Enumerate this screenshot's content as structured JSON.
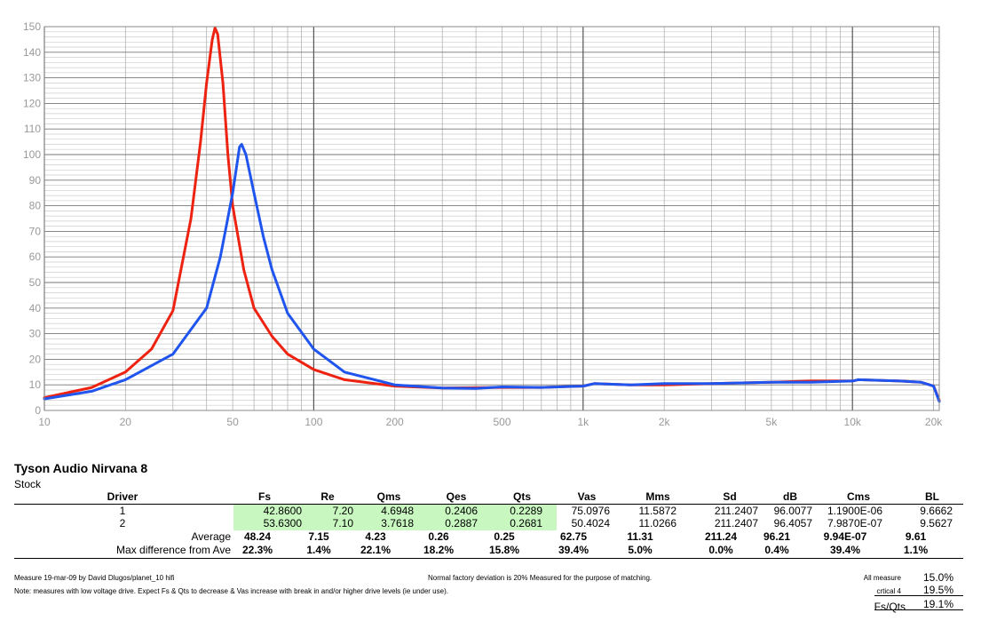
{
  "chart_data": {
    "type": "line",
    "xscale": "log",
    "xlim": [
      10,
      21000
    ],
    "ylim": [
      0,
      150
    ],
    "grid": true,
    "x_ticks": [
      {
        "value": 10,
        "label": "10"
      },
      {
        "value": 20,
        "label": "20"
      },
      {
        "value": 50,
        "label": "50"
      },
      {
        "value": 100,
        "label": "100"
      },
      {
        "value": 200,
        "label": "200"
      },
      {
        "value": 500,
        "label": "500"
      },
      {
        "value": 1000,
        "label": "1k"
      },
      {
        "value": 2000,
        "label": "2k"
      },
      {
        "value": 5000,
        "label": "5k"
      },
      {
        "value": 10000,
        "label": "10k"
      },
      {
        "value": 20000,
        "label": "20k"
      }
    ],
    "y_ticks": [
      0,
      10,
      20,
      30,
      40,
      50,
      60,
      70,
      80,
      90,
      100,
      110,
      120,
      130,
      140,
      150
    ],
    "series": [
      {
        "color": "#ee2211",
        "points": [
          [
            10,
            5
          ],
          [
            15,
            9
          ],
          [
            20,
            15
          ],
          [
            25,
            24
          ],
          [
            30,
            39
          ],
          [
            35,
            75
          ],
          [
            38,
            105
          ],
          [
            40,
            128
          ],
          [
            42,
            145
          ],
          [
            43,
            149.5
          ],
          [
            44,
            147
          ],
          [
            46,
            128
          ],
          [
            48,
            100
          ],
          [
            50,
            80
          ],
          [
            55,
            55
          ],
          [
            60,
            40
          ],
          [
            70,
            29
          ],
          [
            80,
            22
          ],
          [
            100,
            16
          ],
          [
            130,
            12
          ],
          [
            200,
            9.5
          ],
          [
            300,
            8.8
          ],
          [
            500,
            9
          ],
          [
            700,
            9
          ],
          [
            1000,
            9.5
          ],
          [
            1100,
            10.5
          ],
          [
            1500,
            10
          ],
          [
            2000,
            10
          ],
          [
            3000,
            10.5
          ],
          [
            5000,
            11
          ],
          [
            7000,
            11.5
          ],
          [
            10000,
            11.5
          ],
          [
            10500,
            12
          ],
          [
            15000,
            11.5
          ],
          [
            18000,
            11
          ],
          [
            20000,
            9.5
          ],
          [
            21000,
            4
          ]
        ]
      },
      {
        "color": "#1f55ee",
        "points": [
          [
            10,
            4.5
          ],
          [
            15,
            7.5
          ],
          [
            20,
            12
          ],
          [
            30,
            22
          ],
          [
            40,
            40
          ],
          [
            45,
            60
          ],
          [
            50,
            85
          ],
          [
            53,
            103
          ],
          [
            54,
            104
          ],
          [
            56,
            100
          ],
          [
            60,
            85
          ],
          [
            65,
            68
          ],
          [
            70,
            55
          ],
          [
            80,
            38
          ],
          [
            100,
            24
          ],
          [
            130,
            15
          ],
          [
            200,
            10
          ],
          [
            300,
            8.8
          ],
          [
            400,
            8.6
          ],
          [
            500,
            9.2
          ],
          [
            700,
            9
          ],
          [
            1000,
            9.5
          ],
          [
            1100,
            10.5
          ],
          [
            1500,
            10
          ],
          [
            2000,
            10.5
          ],
          [
            3000,
            10.5
          ],
          [
            5000,
            11
          ],
          [
            7000,
            11
          ],
          [
            10000,
            11.5
          ],
          [
            10500,
            12
          ],
          [
            15000,
            11.5
          ],
          [
            18000,
            11
          ],
          [
            20000,
            9.5
          ],
          [
            21000,
            3.5
          ]
        ]
      }
    ]
  },
  "report": {
    "title": "Tyson Audio Nirvana 8",
    "subtitle": "Stock"
  },
  "table": {
    "headers": [
      "Driver",
      "Fs",
      "Re",
      "Qms",
      "Qes",
      "Qts",
      "Vas",
      "Mms",
      "Sd",
      "dB",
      "Cms",
      "BL"
    ],
    "rows": [
      [
        "1",
        "42.8600",
        "7.20",
        "4.6948",
        "0.2406",
        "0.2289",
        "75.0976",
        "11.5872",
        "211.2407",
        "96.0077",
        "1.1900E-06",
        "9.6662"
      ],
      [
        "2",
        "53.6300",
        "7.10",
        "3.7618",
        "0.2887",
        "0.2681",
        "50.4024",
        "11.0266",
        "211.2407",
        "96.4057",
        "7.9870E-07",
        "9.5627"
      ]
    ],
    "average": {
      "label": "Average",
      "values": [
        "48.24",
        "7.15",
        "4.23",
        "0.26",
        "0.25",
        "62.75",
        "11.31",
        "211.24",
        "96.21",
        "9.94E-07",
        "9.61"
      ]
    },
    "max_diff": {
      "label": "Max difference from Ave",
      "values": [
        "22.3%",
        "1.4%",
        "22.1%",
        "18.2%",
        "15.8%",
        "39.4%",
        "5.0%",
        "0.0%",
        "0.4%",
        "39.4%",
        "1.1%"
      ]
    },
    "highlight_color": "#c8f7c0"
  },
  "footer": {
    "measure": "Measure 19-mar-09 by David Dlugos/planet_10 hifi",
    "note": "Note: measures with low voltage drive.  Expect Fs & Qts to decrease & Vas increase with break in and/or higher drive levels (ie under use).",
    "factory": "Normal factory deviation is 20% Measured for the purpose of matching.",
    "stats": [
      {
        "label": "All measure",
        "value": "15.0%"
      },
      {
        "label": "crtical 4",
        "value": "19.5%"
      },
      {
        "label": "Fs/Qts",
        "value": "19.1%"
      }
    ]
  }
}
